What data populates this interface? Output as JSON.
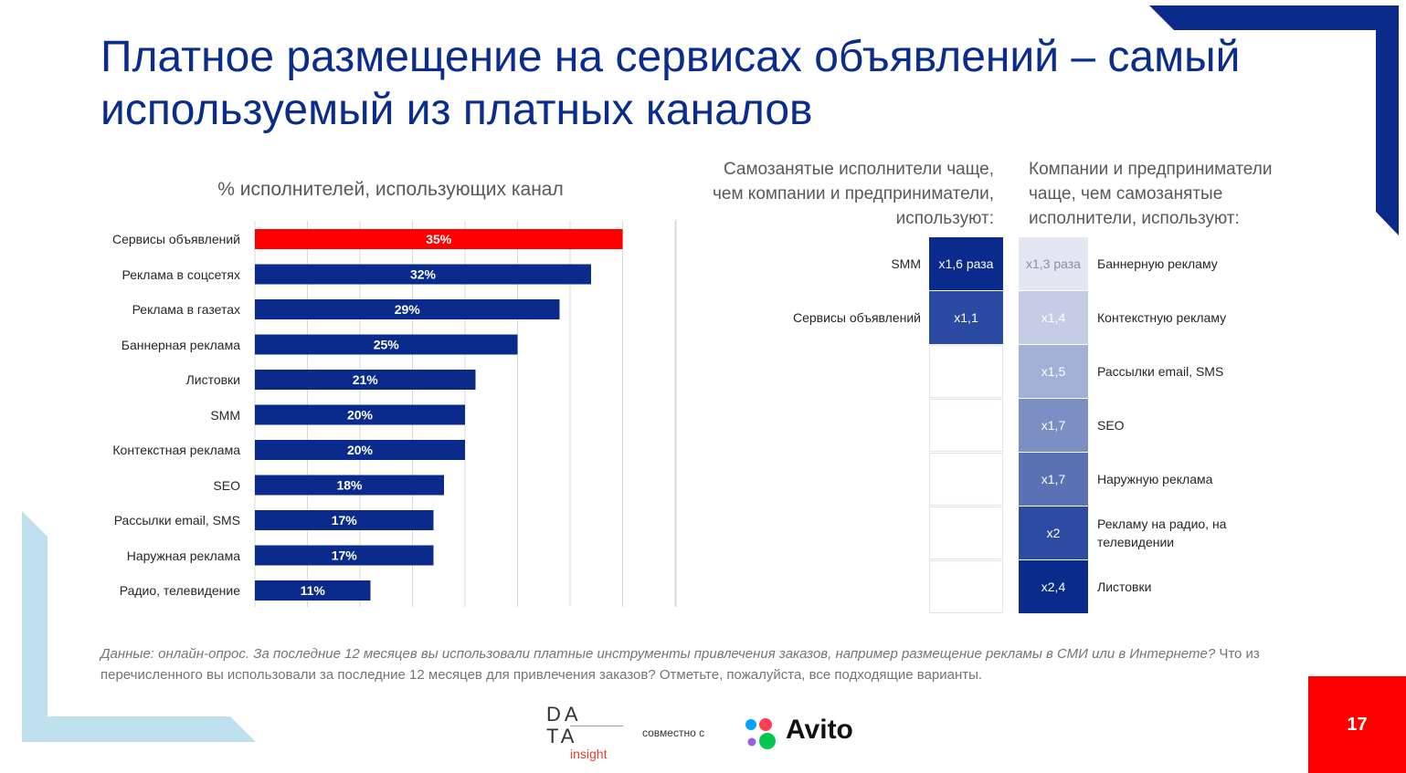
{
  "title": "Платное размещение на сервисах объявлений – самый используемый из платных каналов",
  "chart_data": [
    {
      "type": "bar",
      "orientation": "horizontal",
      "title": "%  исполнителей, использующих канал",
      "categories": [
        "Сервисы объявлений",
        "Реклама в соцсетях",
        "Реклама в газетах",
        "Баннерная реклама",
        "Листовки",
        "SMM",
        "Контекстная реклама",
        "SEO",
        "Рассылки  email, SMS",
        "Наружная реклама",
        "Радио, телевидение"
      ],
      "values": [
        35,
        32,
        29,
        25,
        21,
        20,
        20,
        18,
        17,
        17,
        11
      ],
      "value_labels": [
        "35%",
        "32%",
        "29%",
        "25%",
        "21%",
        "20%",
        "20%",
        "18%",
        "17%",
        "17%",
        "11%"
      ],
      "xlim": [
        0,
        40
      ],
      "grid": true,
      "colors": {
        "highlight": "#ff0000",
        "default": "#0a2b8c"
      }
    },
    {
      "type": "table",
      "title": "Самозанятые исполнители чаще, чем компании и предприниматели, используют:",
      "rows": [
        {
          "label": "SMM",
          "value": "x1,6 раза",
          "color": "#0a2b8c"
        },
        {
          "label": "Сервисы объявлений",
          "value": "x1,1",
          "color": "#2a4aa3"
        }
      ],
      "empty_rows": 5
    },
    {
      "type": "table",
      "title": "Компании и предприниматели чаще, чем самозанятые исполнители, используют:",
      "rows": [
        {
          "label": "Баннерную рекламу",
          "value": "x1,3 раза",
          "color": "#e3e7f2"
        },
        {
          "label": "Контекстную рекламу",
          "value": "x1,4",
          "color": "#c5cde6"
        },
        {
          "label": "Рассылки email, SMS",
          "value": "x1,5",
          "color": "#a2b0d6"
        },
        {
          "label": "SEO",
          "value": "x1,7",
          "color": "#7c8fc4"
        },
        {
          "label": "Наружную реклама",
          "value": "x1,7",
          "color": "#5a72b4"
        },
        {
          "label": "Рекламу на радио, на телевидении",
          "value": "x2",
          "color": "#2d4ba3"
        },
        {
          "label": "Листовки",
          "value": "x2,4",
          "color": "#0a2b8c"
        }
      ]
    }
  ],
  "footnote": {
    "italic": "Данные: онлайн-опрос. За последние 12 месяцев вы использовали платные инструменты привлечения заказов, например размещение рекламы в СМИ или в Интернете?",
    "regular": " Что из перечисленного вы использовали за последние 12 месяцев для привлечения заказов? Отметьте, пожалуйста, все подходящие варианты."
  },
  "logos": {
    "data_insight_top": "DA",
    "data_insight_mid": "TA",
    "data_insight_sub": "insight",
    "together": "совместно с",
    "avito": "Avito"
  },
  "page_number": "17",
  "colors": {
    "title": "#0a2c8c",
    "accent_red": "#ff0000",
    "navy": "#0a2b8c",
    "light_blue": "#bfe0ef"
  }
}
